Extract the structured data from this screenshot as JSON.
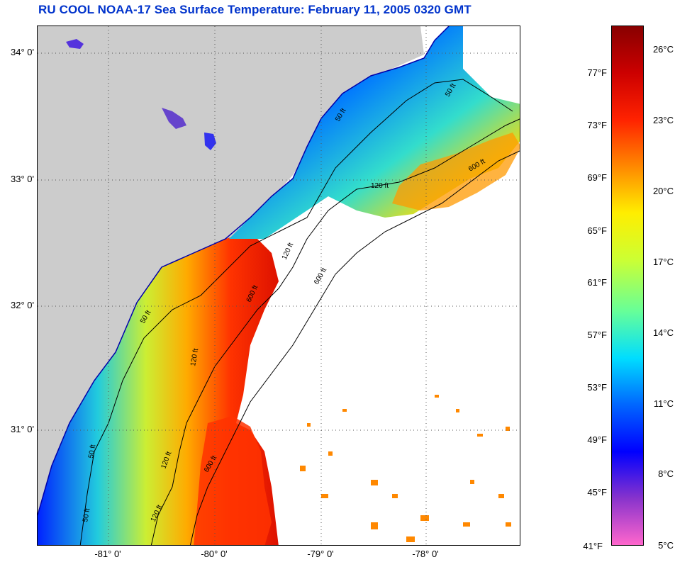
{
  "title": "RU COOL  NOAA-17  Sea Surface Temperature:  February 11, 2005 0320 GMT",
  "map": {
    "lat_labels": [
      "34° 0'",
      "33° 0'",
      "32° 0'",
      "31° 0'"
    ],
    "lon_labels": [
      "-81° 0'",
      "-80° 0'",
      "-79° 0'",
      "-78° 0'"
    ],
    "contour_labels": [
      "50 ft",
      "120 ft",
      "600 ft",
      "50 ft",
      "120 ft",
      "600 ft",
      "50 ft",
      "120 ft",
      "600 ft",
      "50 ft",
      "120 ft",
      "600 ft",
      "50 ft",
      "120 ft"
    ],
    "colors": {
      "land": "#cccccc",
      "cloud_mask": "#ffffff",
      "grid": "#555555",
      "contour": "#000000"
    }
  },
  "colorbar": {
    "fahrenheit_labels": [
      "77°F",
      "73°F",
      "69°F",
      "65°F",
      "61°F",
      "57°F",
      "53°F",
      "49°F",
      "45°F",
      "41°F"
    ],
    "celsius_labels": [
      "26°C",
      "23°C",
      "20°C",
      "17°C",
      "14°C",
      "11°C",
      "8°C",
      "5°C"
    ],
    "range_celsius": [
      5,
      27.5
    ],
    "colors": [
      "#ff66cc",
      "#8833cc",
      "#0000ff",
      "#0066ff",
      "#00ddff",
      "#66ff99",
      "#ccff33",
      "#ffee00",
      "#ff8800",
      "#ff2200",
      "#cc0000",
      "#880000"
    ]
  }
}
